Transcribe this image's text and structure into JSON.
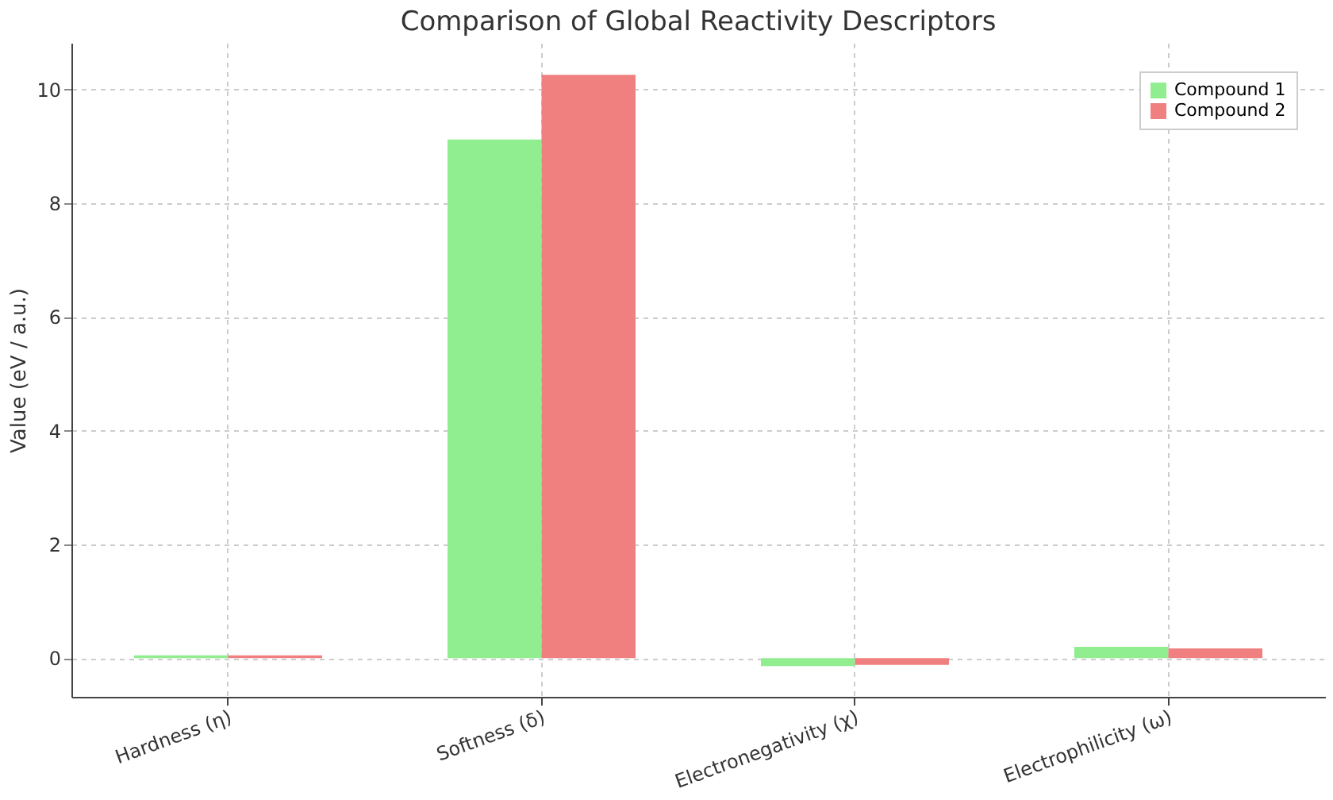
{
  "chart_data": {
    "type": "bar",
    "title": "Comparison of Global Reactivity Descriptors",
    "ylabel": "Value (eV / a.u.)",
    "categories": [
      "Hardness (η)",
      "Softness (δ)",
      "Electronegativity (χ)",
      "Electrophilicity (ω)"
    ],
    "series": [
      {
        "name": "Compound 1",
        "color": "#90ee90",
        "values": [
          0.05,
          9.12,
          -0.14,
          0.2
        ]
      },
      {
        "name": "Compound 2",
        "color": "#f08080",
        "values": [
          0.05,
          10.26,
          -0.12,
          0.17
        ]
      }
    ],
    "ylim": [
      -0.68,
      10.82
    ],
    "yticks": [
      0,
      2,
      4,
      6,
      8,
      10
    ],
    "grid": true,
    "legend": "top right"
  }
}
